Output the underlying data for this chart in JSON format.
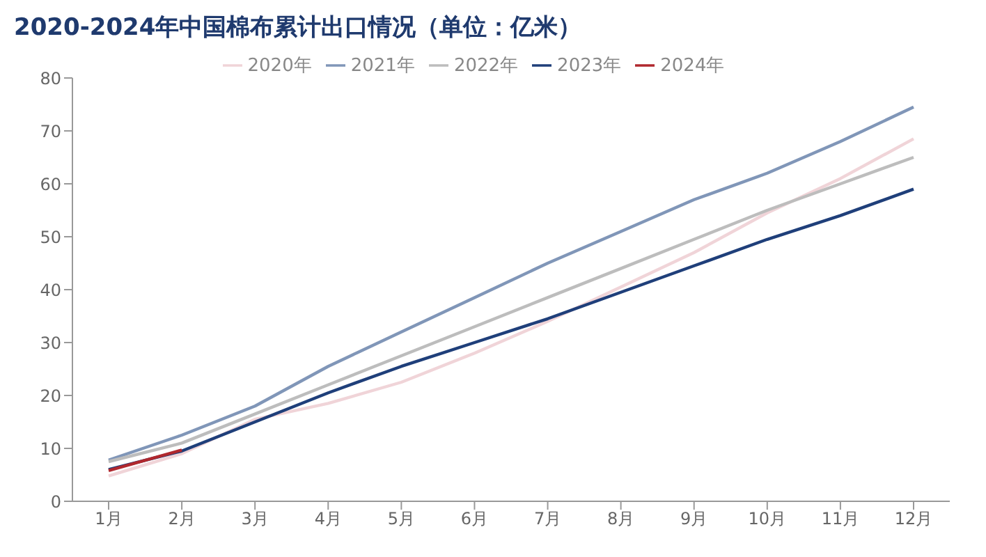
{
  "chart_data": {
    "type": "line",
    "title": "2020-2024年中国棉布累计出口情况（单位：亿米）",
    "categories": [
      "1月",
      "2月",
      "3月",
      "4月",
      "5月",
      "6月",
      "7月",
      "8月",
      "9月",
      "10月",
      "11月",
      "12月"
    ],
    "series": [
      {
        "name": "2020年",
        "color": "#f0d4d8",
        "values": [
          4.8,
          9,
          15.5,
          18.5,
          22.5,
          28,
          34,
          40.5,
          47,
          54.5,
          61,
          68.5
        ]
      },
      {
        "name": "2021年",
        "color": "#8096b8",
        "values": [
          7.8,
          12.5,
          18,
          25.5,
          32,
          38.5,
          45,
          51,
          57,
          62,
          68,
          74.5
        ]
      },
      {
        "name": "2022年",
        "color": "#bdbdbd",
        "values": [
          7.5,
          11,
          16.5,
          22,
          27.5,
          33,
          38.5,
          44,
          49.5,
          55,
          60,
          65
        ]
      },
      {
        "name": "2023年",
        "color": "#1f3f7a",
        "values": [
          6,
          9.5,
          15,
          20.5,
          25.5,
          30,
          34.5,
          39.5,
          44.5,
          49.5,
          54,
          59
        ]
      },
      {
        "name": "2024年",
        "color": "#b0282e",
        "values": [
          5.8,
          9.7,
          null,
          null,
          null,
          null,
          null,
          null,
          null,
          null,
          null,
          null
        ]
      }
    ],
    "ylim": [
      0,
      80
    ],
    "yticks": [
      0,
      10,
      20,
      30,
      40,
      50,
      60,
      70,
      80
    ],
    "grid": false,
    "legend": "top",
    "marker": "none",
    "line_style": "solid"
  }
}
